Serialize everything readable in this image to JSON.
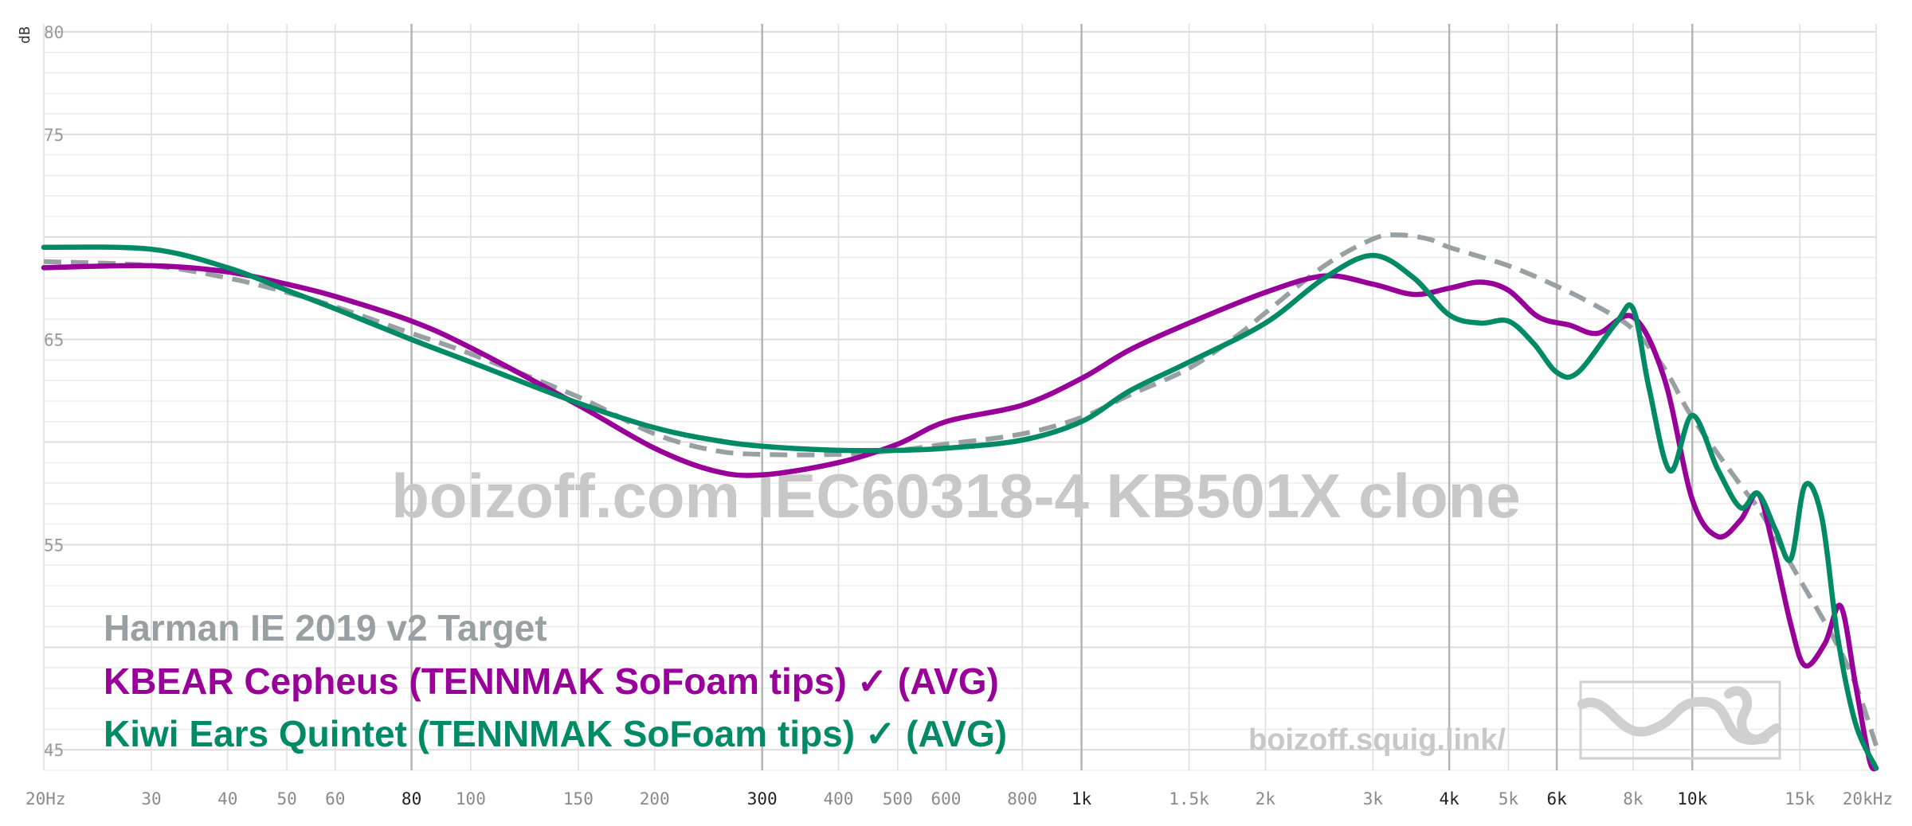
{
  "chart_data": {
    "type": "line",
    "x_scale": "log",
    "xlim": [
      20,
      20000
    ],
    "ylim": [
      44,
      80
    ],
    "y_unit": "dB",
    "grid": true,
    "x_ticks": [
      {
        "v": 20,
        "label": "20Hz",
        "major": false
      },
      {
        "v": 30,
        "label": "30",
        "major": false
      },
      {
        "v": 40,
        "label": "40",
        "major": false
      },
      {
        "v": 50,
        "label": "50",
        "major": false
      },
      {
        "v": 60,
        "label": "60",
        "major": false
      },
      {
        "v": 80,
        "label": "80",
        "major": true
      },
      {
        "v": 100,
        "label": "100",
        "major": false
      },
      {
        "v": 150,
        "label": "150",
        "major": false
      },
      {
        "v": 200,
        "label": "200",
        "major": false
      },
      {
        "v": 300,
        "label": "300",
        "major": true
      },
      {
        "v": 400,
        "label": "400",
        "major": false
      },
      {
        "v": 500,
        "label": "500",
        "major": false
      },
      {
        "v": 600,
        "label": "600",
        "major": false
      },
      {
        "v": 800,
        "label": "800",
        "major": false
      },
      {
        "v": 1000,
        "label": "1k",
        "major": true
      },
      {
        "v": 1500,
        "label": "1.5k",
        "major": false
      },
      {
        "v": 2000,
        "label": "2k",
        "major": false
      },
      {
        "v": 3000,
        "label": "3k",
        "major": false
      },
      {
        "v": 4000,
        "label": "4k",
        "major": true
      },
      {
        "v": 5000,
        "label": "5k",
        "major": false
      },
      {
        "v": 6000,
        "label": "6k",
        "major": true
      },
      {
        "v": 8000,
        "label": "8k",
        "major": false
      },
      {
        "v": 10000,
        "label": "10k",
        "major": true
      },
      {
        "v": 15000,
        "label": "15k",
        "major": false
      },
      {
        "v": 20000,
        "label": "20kHz",
        "major": false
      }
    ],
    "y_labels": [
      "80",
      "75",
      "65",
      "55",
      "45"
    ],
    "watermark": "boizoff.com IEC60318-4 KB501X clone",
    "site": "boizoff.squig.link/",
    "series": [
      {
        "name": "Harman IE 2019 v2 Target",
        "color": "#98a0a3",
        "dashed": true,
        "points": [
          [
            20,
            68.8
          ],
          [
            30,
            68.6
          ],
          [
            40,
            68
          ],
          [
            50,
            67.3
          ],
          [
            60,
            66.6
          ],
          [
            80,
            65.3
          ],
          [
            100,
            64.3
          ],
          [
            150,
            62.2
          ],
          [
            200,
            60.4
          ],
          [
            250,
            59.6
          ],
          [
            300,
            59.4
          ],
          [
            400,
            59.4
          ],
          [
            500,
            59.6
          ],
          [
            600,
            59.9
          ],
          [
            800,
            60.4
          ],
          [
            1000,
            61.2
          ],
          [
            1200,
            62.3
          ],
          [
            1500,
            63.6
          ],
          [
            1800,
            65.2
          ],
          [
            2000,
            66.3
          ],
          [
            2500,
            68.6
          ],
          [
            3000,
            69.9
          ],
          [
            3300,
            70.1
          ],
          [
            3700,
            69.9
          ],
          [
            4000,
            69.5
          ],
          [
            5000,
            68.6
          ],
          [
            6000,
            67.6
          ],
          [
            7000,
            66.6
          ],
          [
            8000,
            65.5
          ],
          [
            9000,
            63.6
          ],
          [
            10000,
            61.2
          ],
          [
            12000,
            57.9
          ],
          [
            13000,
            56.5
          ],
          [
            15000,
            53.3
          ],
          [
            17000,
            50.5
          ],
          [
            18500,
            48.2
          ],
          [
            20000,
            45.2
          ]
        ]
      },
      {
        "name": "KBEAR Cepheus (TENNMAK SoFoam tips) ✓ (AVG)",
        "color": "#990099",
        "dashed": false,
        "points": [
          [
            20,
            68.5
          ],
          [
            30,
            68.6
          ],
          [
            40,
            68.3
          ],
          [
            50,
            67.7
          ],
          [
            60,
            67.1
          ],
          [
            80,
            65.9
          ],
          [
            100,
            64.6
          ],
          [
            150,
            61.8
          ],
          [
            200,
            59.7
          ],
          [
            250,
            58.6
          ],
          [
            300,
            58.4
          ],
          [
            400,
            59
          ],
          [
            500,
            59.9
          ],
          [
            600,
            61
          ],
          [
            800,
            61.8
          ],
          [
            1000,
            63.1
          ],
          [
            1200,
            64.5
          ],
          [
            1500,
            65.8
          ],
          [
            2000,
            67.3
          ],
          [
            2500,
            68.1
          ],
          [
            3000,
            67.7
          ],
          [
            3500,
            67.2
          ],
          [
            4000,
            67.5
          ],
          [
            4500,
            67.8
          ],
          [
            5000,
            67.4
          ],
          [
            5600,
            66.1
          ],
          [
            6300,
            65.7
          ],
          [
            7000,
            65.3
          ],
          [
            8000,
            66.1
          ],
          [
            9000,
            63.1
          ],
          [
            10000,
            57.2
          ],
          [
            11000,
            55.4
          ],
          [
            12000,
            56.2
          ],
          [
            12800,
            57.5
          ],
          [
            13500,
            55.2
          ],
          [
            14500,
            51.1
          ],
          [
            15300,
            49.1
          ],
          [
            16500,
            50.2
          ],
          [
            17500,
            52
          ],
          [
            18500,
            48.2
          ],
          [
            19500,
            44.5
          ],
          [
            20000,
            44.1
          ]
        ]
      },
      {
        "name": "Kiwi Ears Quintet (TENNMAK SoFoam tips) ✓ (AVG)",
        "color": "#008a66",
        "dashed": false,
        "points": [
          [
            20,
            69.5
          ],
          [
            30,
            69.4
          ],
          [
            40,
            68.5
          ],
          [
            50,
            67.4
          ],
          [
            60,
            66.5
          ],
          [
            80,
            65
          ],
          [
            100,
            63.9
          ],
          [
            150,
            61.9
          ],
          [
            200,
            60.7
          ],
          [
            250,
            60.1
          ],
          [
            300,
            59.8
          ],
          [
            400,
            59.6
          ],
          [
            500,
            59.6
          ],
          [
            600,
            59.7
          ],
          [
            800,
            60.1
          ],
          [
            1000,
            61
          ],
          [
            1200,
            62.5
          ],
          [
            1500,
            63.9
          ],
          [
            2000,
            65.8
          ],
          [
            2500,
            68
          ],
          [
            3000,
            69.1
          ],
          [
            3500,
            68
          ],
          [
            4000,
            66.2
          ],
          [
            4500,
            65.8
          ],
          [
            5000,
            65.9
          ],
          [
            5500,
            64.8
          ],
          [
            6000,
            63.4
          ],
          [
            6500,
            63.4
          ],
          [
            7500,
            65.8
          ],
          [
            8000,
            66.5
          ],
          [
            8500,
            62.6
          ],
          [
            9200,
            58.6
          ],
          [
            10000,
            61.3
          ],
          [
            11000,
            58.7
          ],
          [
            12000,
            56.8
          ],
          [
            12800,
            57.5
          ],
          [
            13700,
            55.7
          ],
          [
            14500,
            54.3
          ],
          [
            15300,
            57.9
          ],
          [
            16300,
            56.3
          ],
          [
            17300,
            50.5
          ],
          [
            18500,
            46.3
          ],
          [
            20000,
            44.1
          ]
        ]
      }
    ]
  }
}
